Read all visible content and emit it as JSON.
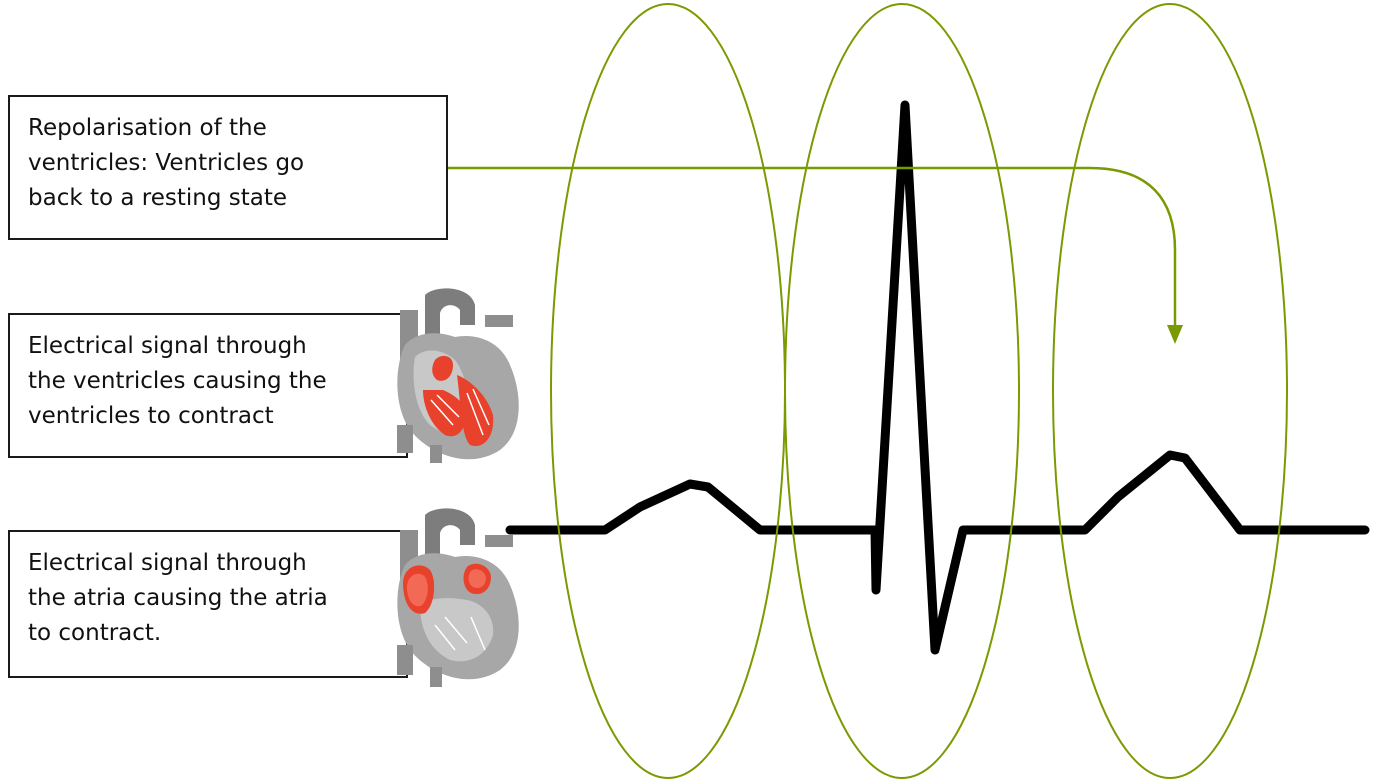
{
  "labels": {
    "repolarisation": {
      "lines": [
        "Repolarisation of the",
        "ventricles: Ventricles go",
        "back to a resting state"
      ]
    },
    "ventricles": {
      "lines": [
        "Electrical signal through",
        "the ventricles causing the",
        "ventricles to contract"
      ]
    },
    "atria": {
      "lines": [
        "Electrical signal through",
        "the atria causing the atria",
        "to contract."
      ]
    }
  },
  "colors": {
    "ellipse_outline": "#7a9a01",
    "arrow": "#7a9a01",
    "ecg_trace": "#000000",
    "heart_highlight": "#e8412c",
    "heart_body": "#9e9e9e"
  },
  "icons": {
    "ventricle_heart": "heart-ventricles-highlighted-icon",
    "atria_heart": "heart-atria-highlighted-icon"
  }
}
